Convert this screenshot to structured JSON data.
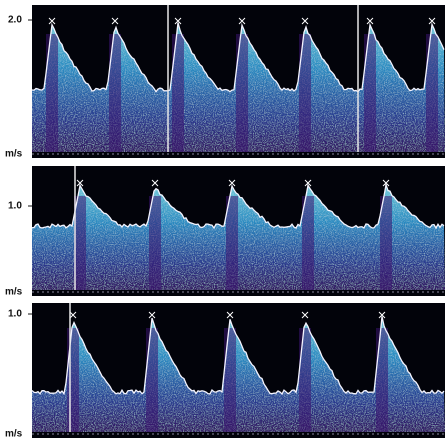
{
  "panels": [
    {
      "scale_label": "2.0",
      "unit": "m/s"
    },
    {
      "scale_label": "1.0",
      "unit": "m/s"
    },
    {
      "scale_label": "1.0",
      "unit": "m/s"
    }
  ]
}
